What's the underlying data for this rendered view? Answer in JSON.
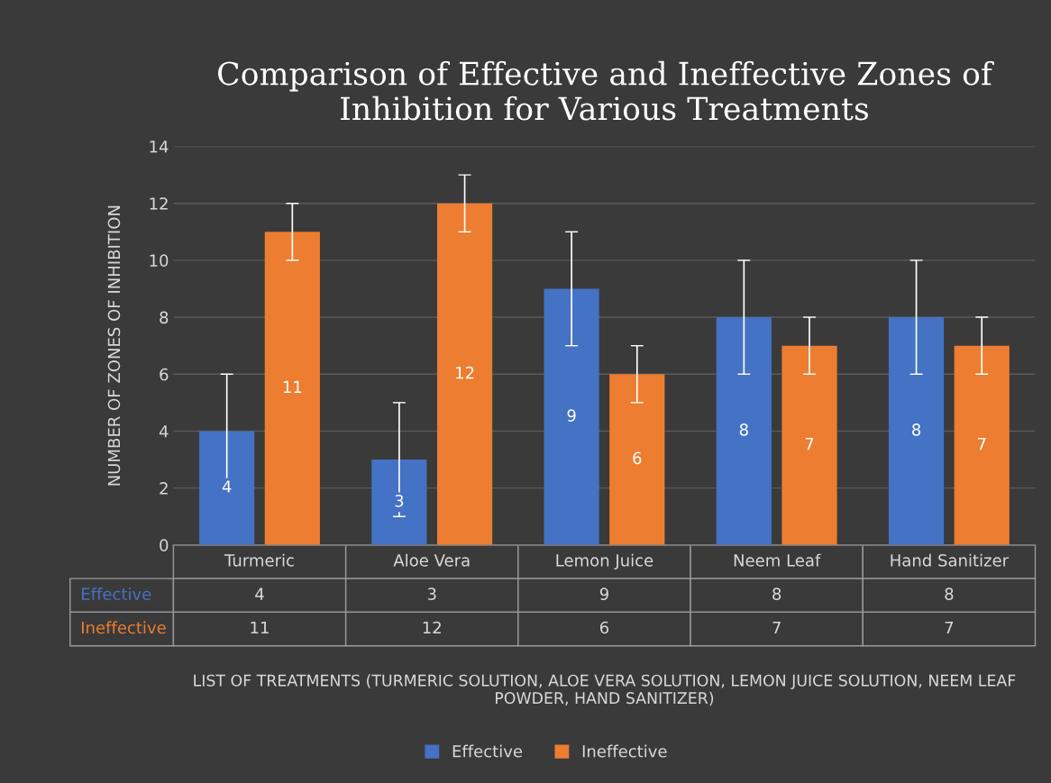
{
  "chart_data": {
    "type": "bar",
    "title": "Comparison of Effective and Ineffective Zones of Inhibition for Various Treatments",
    "ylabel": "NUMBER OF ZONES OF INHIBITION",
    "categories": [
      "Turmeric",
      "Aloe Vera",
      "Lemon Juice",
      "Neem Leaf",
      "Hand Sanitizer"
    ],
    "series": [
      {
        "name": "Effective",
        "color": "#4472c4",
        "values": [
          4,
          3,
          9,
          8,
          8
        ],
        "errors": [
          2,
          2,
          2,
          2,
          2
        ],
        "value_labels": [
          "4",
          "3",
          "9",
          "8",
          "8"
        ]
      },
      {
        "name": "Ineffective",
        "color": "#ed7d31",
        "values": [
          11,
          12,
          6,
          7,
          7
        ],
        "errors": [
          1,
          1,
          1,
          1,
          1
        ],
        "value_labels": [
          "11",
          "12",
          "6",
          "7",
          "7"
        ]
      }
    ],
    "ylim": [
      0,
      14
    ],
    "yticks": [
      0,
      2,
      4,
      6,
      8,
      10,
      12,
      14
    ],
    "annotations": [
      "LIST OF TREATMENTS (TURMERIC SOLUTION, ALOE VERA SOLUTION, LEMON JUICE SOLUTION, NEEM LEAF POWDER, HAND SANITIZER)",
      "4",
      "3",
      "9",
      "8",
      "8",
      "11",
      "12",
      "6",
      "7",
      "7"
    ],
    "grid": "y",
    "legend": "bottom"
  }
}
